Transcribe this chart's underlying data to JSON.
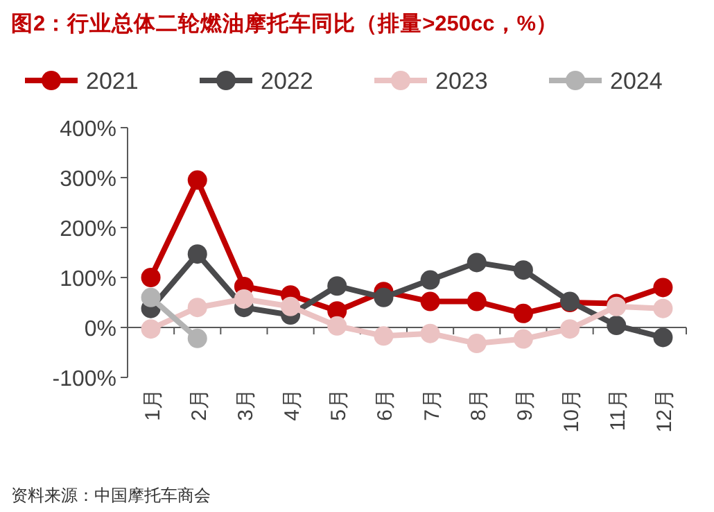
{
  "chart_data": {
    "type": "line",
    "title": "图2：行业总体二轮燃油摩托车同比（排量>250cc，%）",
    "annotations": [
      "资料来源：中国摩托车商会"
    ],
    "categories": [
      "1月",
      "2月",
      "3月",
      "4月",
      "5月",
      "6月",
      "7月",
      "8月",
      "9月",
      "10月",
      "11月",
      "12月"
    ],
    "series": [
      {
        "name": "2021",
        "color": "#c00000",
        "values": [
          100,
          295,
          82,
          65,
          33,
          72,
          52,
          52,
          28,
          50,
          48,
          80
        ]
      },
      {
        "name": "2022",
        "color": "#4a4a4c",
        "values": [
          38,
          147,
          40,
          25,
          83,
          60,
          95,
          130,
          115,
          52,
          4,
          -20
        ]
      },
      {
        "name": "2023",
        "color": "#ebc2c2",
        "values": [
          -3,
          40,
          57,
          42,
          3,
          -17,
          -12,
          -32,
          -23,
          -3,
          42,
          38
        ]
      },
      {
        "name": "2024",
        "color": "#b3b3b3",
        "values": [
          60,
          -22,
          null,
          null,
          null,
          null,
          null,
          null,
          null,
          null,
          null,
          null
        ]
      }
    ],
    "ylim": [
      -100,
      400
    ],
    "yticks": [
      {
        "value": -100,
        "label": "-100%"
      },
      {
        "value": 0,
        "label": "0%"
      },
      {
        "value": 100,
        "label": "100%"
      },
      {
        "value": 200,
        "label": "200%"
      },
      {
        "value": 300,
        "label": "300%"
      },
      {
        "value": 400,
        "label": "400%"
      }
    ],
    "legend": "top",
    "marker": "circle"
  }
}
